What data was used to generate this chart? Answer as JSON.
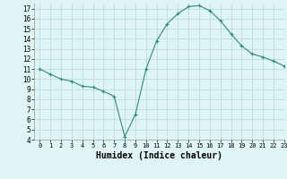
{
  "x": [
    0,
    1,
    2,
    3,
    4,
    5,
    6,
    7,
    8,
    9,
    10,
    11,
    12,
    13,
    14,
    15,
    16,
    17,
    18,
    19,
    20,
    21,
    22,
    23
  ],
  "y": [
    11.0,
    10.5,
    10.0,
    9.8,
    9.3,
    9.2,
    8.8,
    8.3,
    4.3,
    6.5,
    11.0,
    13.8,
    15.5,
    16.5,
    17.2,
    17.3,
    16.8,
    15.8,
    14.5,
    13.3,
    12.5,
    12.2,
    11.8,
    11.3
  ],
  "xlabel": "Humidex (Indice chaleur)",
  "ylim": [
    4,
    17.5
  ],
  "xlim": [
    -0.5,
    23
  ],
  "yticks": [
    4,
    5,
    6,
    7,
    8,
    9,
    10,
    11,
    12,
    13,
    14,
    15,
    16,
    17
  ],
  "xticks": [
    0,
    1,
    2,
    3,
    4,
    5,
    6,
    7,
    8,
    9,
    10,
    11,
    12,
    13,
    14,
    15,
    16,
    17,
    18,
    19,
    20,
    21,
    22,
    23
  ],
  "line_color": "#2e8b7a",
  "marker": "+",
  "marker_size": 3,
  "bg_color": "#dff5f5",
  "grid_color": "#b8d8d8",
  "tick_fontsize": 5,
  "xlabel_fontsize": 7
}
